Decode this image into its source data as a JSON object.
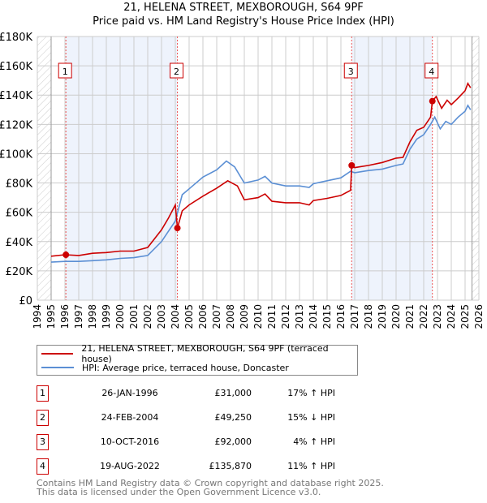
{
  "chart_data": {
    "type": "line",
    "title": "21, HELENA STREET, MEXBOROUGH, S64 9PF",
    "subtitle": "Price paid vs. HM Land Registry's House Price Index (HPI)",
    "xlim": [
      1994,
      2026
    ],
    "ylim": [
      0,
      180000
    ],
    "x_ticks": [
      "1994",
      "1995",
      "1996",
      "1997",
      "1998",
      "1999",
      "2000",
      "2001",
      "2002",
      "2003",
      "2004",
      "2005",
      "2006",
      "2007",
      "2008",
      "2009",
      "2010",
      "2011",
      "2012",
      "2013",
      "2014",
      "2015",
      "2016",
      "2017",
      "2018",
      "2019",
      "2020",
      "2021",
      "2022",
      "2023",
      "2024",
      "2025",
      "2026"
    ],
    "y_ticks": [
      {
        "v": 0,
        "label": "£0"
      },
      {
        "v": 20000,
        "label": "£20K"
      },
      {
        "v": 40000,
        "label": "£40K"
      },
      {
        "v": 60000,
        "label": "£60K"
      },
      {
        "v": 80000,
        "label": "£80K"
      },
      {
        "v": 100000,
        "label": "£100K"
      },
      {
        "v": 120000,
        "label": "£120K"
      },
      {
        "v": 140000,
        "label": "£140K"
      },
      {
        "v": 160000,
        "label": "£160K"
      },
      {
        "v": 180000,
        "label": "£180K"
      }
    ],
    "grid": true,
    "series": [
      {
        "name": "21, HELENA STREET, MEXBOROUGH, S64 9PF (terraced house)",
        "color": "#cc0000",
        "x": [
          1995,
          1996,
          1997,
          1998,
          1999,
          2000,
          2001,
          2002,
          2003,
          2003.5,
          2004.0,
          2004.15,
          2004.5,
          2005,
          2006,
          2007,
          2007.8,
          2008.5,
          2009,
          2010,
          2010.5,
          2011,
          2012,
          2013,
          2013.7,
          2014,
          2015,
          2016,
          2016.7,
          2016.78,
          2017,
          2018,
          2019,
          2020,
          2020.5,
          2021,
          2021.5,
          2022,
          2022.5,
          2022.63,
          2022.9,
          2023.3,
          2023.7,
          2024,
          2024.5,
          2025,
          2025.2,
          2025.4
        ],
        "y": [
          30000,
          31000,
          30500,
          32000,
          32500,
          33500,
          33500,
          36000,
          48000,
          56000,
          65000,
          49250,
          61000,
          65000,
          71000,
          76500,
          81500,
          78000,
          68500,
          70000,
          72500,
          67500,
          66500,
          66500,
          65000,
          68000,
          69500,
          71500,
          75000,
          92000,
          90500,
          92000,
          94000,
          97000,
          97500,
          108000,
          116000,
          118000,
          125000,
          135870,
          139000,
          131000,
          136500,
          133500,
          138000,
          143000,
          148000,
          145000
        ]
      },
      {
        "name": "HPI: Average price, terraced house, Doncaster",
        "color": "#5b8fd4",
        "x": [
          1995,
          1996,
          1997,
          1998,
          1999,
          2000,
          2001,
          2002,
          2003,
          2003.5,
          2004,
          2004.5,
          2005,
          2006,
          2007,
          2007.7,
          2008.3,
          2009,
          2010,
          2010.5,
          2011,
          2012,
          2013,
          2013.7,
          2014,
          2015,
          2016,
          2016.7,
          2017,
          2018,
          2019,
          2020,
          2020.5,
          2021,
          2021.5,
          2022,
          2022.5,
          2022.8,
          2023.2,
          2023.6,
          2024,
          2024.5,
          2025,
          2025.2,
          2025.4
        ],
        "y": [
          26000,
          26500,
          26500,
          27000,
          27500,
          28500,
          29000,
          30500,
          40000,
          47000,
          54000,
          72000,
          76000,
          84000,
          89000,
          95000,
          91000,
          80000,
          82000,
          84500,
          80000,
          78000,
          78000,
          77000,
          79500,
          81500,
          83500,
          88000,
          87000,
          88500,
          89500,
          92000,
          93000,
          103000,
          110000,
          113000,
          120000,
          125000,
          117000,
          122000,
          120000,
          125000,
          129000,
          133000,
          130000
        ]
      }
    ],
    "sales": [
      {
        "n": "1",
        "x": 1996.07,
        "price": 31000
      },
      {
        "n": "2",
        "x": 2004.15,
        "price": 49250
      },
      {
        "n": "3",
        "x": 2016.78,
        "price": 92000
      },
      {
        "n": "4",
        "x": 2022.63,
        "price": 135870
      }
    ],
    "legend_placement": "below"
  },
  "legend": {
    "red_label": "21, HELENA STREET, MEXBOROUGH, S64 9PF (terraced house)",
    "blue_label": "HPI: Average price, terraced house, Doncaster"
  },
  "table": [
    {
      "n": "1",
      "date": "26-JAN-1996",
      "price": "£31,000",
      "hpi": "17% ↑ HPI"
    },
    {
      "n": "2",
      "date": "24-FEB-2004",
      "price": "£49,250",
      "hpi": "15% ↓ HPI"
    },
    {
      "n": "3",
      "date": "10-OCT-2016",
      "price": "£92,000",
      "hpi": "4% ↑ HPI"
    },
    {
      "n": "4",
      "date": "19-AUG-2022",
      "price": "£135,870",
      "hpi": "11% ↑ HPI"
    }
  ],
  "footer": {
    "line1": "Contains HM Land Registry data © Crown copyright and database right 2025.",
    "line2": "This data is licensed under the Open Government Licence v3.0."
  }
}
